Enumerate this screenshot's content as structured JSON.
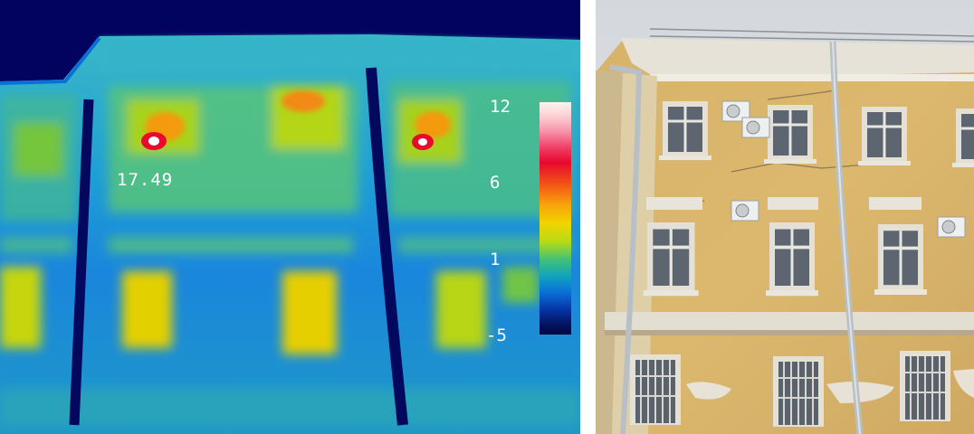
{
  "thermal_image": {
    "spot_temperature": "17.49",
    "scale_labels": [
      "12",
      "6",
      "1",
      "-5"
    ],
    "palette": [
      "#fff3ef",
      "#f03a62",
      "#f8a20b",
      "#f0d400",
      "#3ec07a",
      "#0a6fd6",
      "#02125d"
    ]
  },
  "visual_photo": {
    "wall_color": "#d9b56d",
    "trim_color": "#e4e0d6",
    "sky_color": "#d9dcdf"
  }
}
